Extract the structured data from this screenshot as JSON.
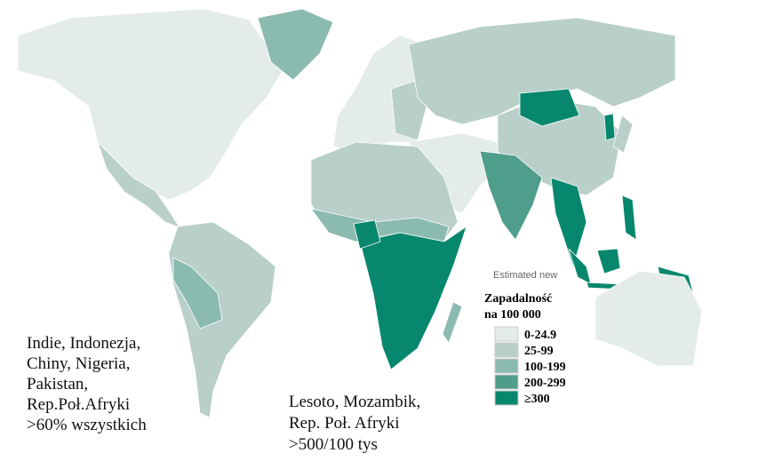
{
  "legend": {
    "caption": "Estimated new",
    "title": [
      "Zapadalność",
      "na 100 000"
    ],
    "items": [
      {
        "label": "0-24.9",
        "color": "#e3ece9"
      },
      {
        "label": "25-99",
        "color": "#b9cfc9"
      },
      {
        "label": "100-199",
        "color": "#8bbab0"
      },
      {
        "label": "200-299",
        "color": "#4f9d8b"
      },
      {
        "label": "≥300",
        "color": "#07876d"
      }
    ]
  },
  "annotations": [
    {
      "lines": [
        "Indie, Indonezja,",
        "Chiny, Nigeria,",
        "Pakistan,",
        "Rep.Poł.Afryki",
        ">60% wszystkich"
      ]
    },
    {
      "lines": [
        "Lesoto, Mozambik,",
        "Rep. Poł. Afryki",
        ">500/100 tys"
      ]
    }
  ]
}
